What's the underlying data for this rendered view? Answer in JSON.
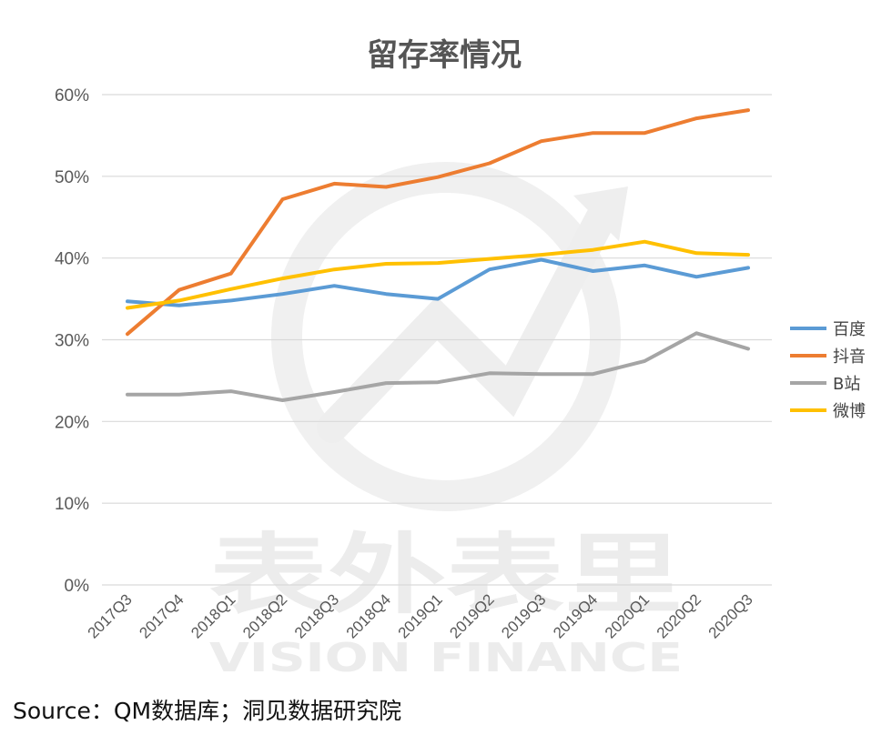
{
  "chart_data": {
    "type": "line",
    "title": "留存率情况",
    "categories": [
      "2017Q3",
      "2017Q4",
      "2018Q1",
      "2018Q2",
      "2018Q3",
      "2018Q4",
      "2019Q1",
      "2019Q2",
      "2019Q3",
      "2019Q4",
      "2020Q1",
      "2020Q2",
      "2020Q3"
    ],
    "ylim": [
      0,
      60
    ],
    "yticks": [
      "0%",
      "10%",
      "20%",
      "30%",
      "40%",
      "50%",
      "60%"
    ],
    "grid": true,
    "legend": "right",
    "series": [
      {
        "name": "百度",
        "color": "#5b9bd5",
        "values": [
          34.7,
          34.2,
          34.8,
          35.6,
          36.6,
          35.6,
          35.0,
          38.6,
          39.8,
          38.4,
          39.1,
          37.7,
          38.8
        ]
      },
      {
        "name": "抖音",
        "color": "#ed7d31",
        "values": [
          30.7,
          36.1,
          38.1,
          47.2,
          49.1,
          48.7,
          49.9,
          51.6,
          54.3,
          55.3,
          55.3,
          57.1,
          58.1
        ]
      },
      {
        "name": "B站",
        "color": "#a5a5a5",
        "values": [
          23.3,
          23.3,
          23.7,
          22.6,
          23.6,
          24.7,
          24.8,
          25.9,
          25.8,
          25.8,
          27.4,
          30.8,
          28.9
        ]
      },
      {
        "name": "微博",
        "color": "#ffc000",
        "values": [
          33.9,
          34.8,
          36.2,
          37.5,
          38.6,
          39.3,
          39.4,
          39.9,
          40.4,
          41.0,
          42.0,
          40.6,
          40.4
        ]
      }
    ]
  },
  "watermark": {
    "text": "表外表里",
    "subtext": "VISION FINANCE"
  },
  "source": "Source：QM数据库；洞见数据研究院"
}
